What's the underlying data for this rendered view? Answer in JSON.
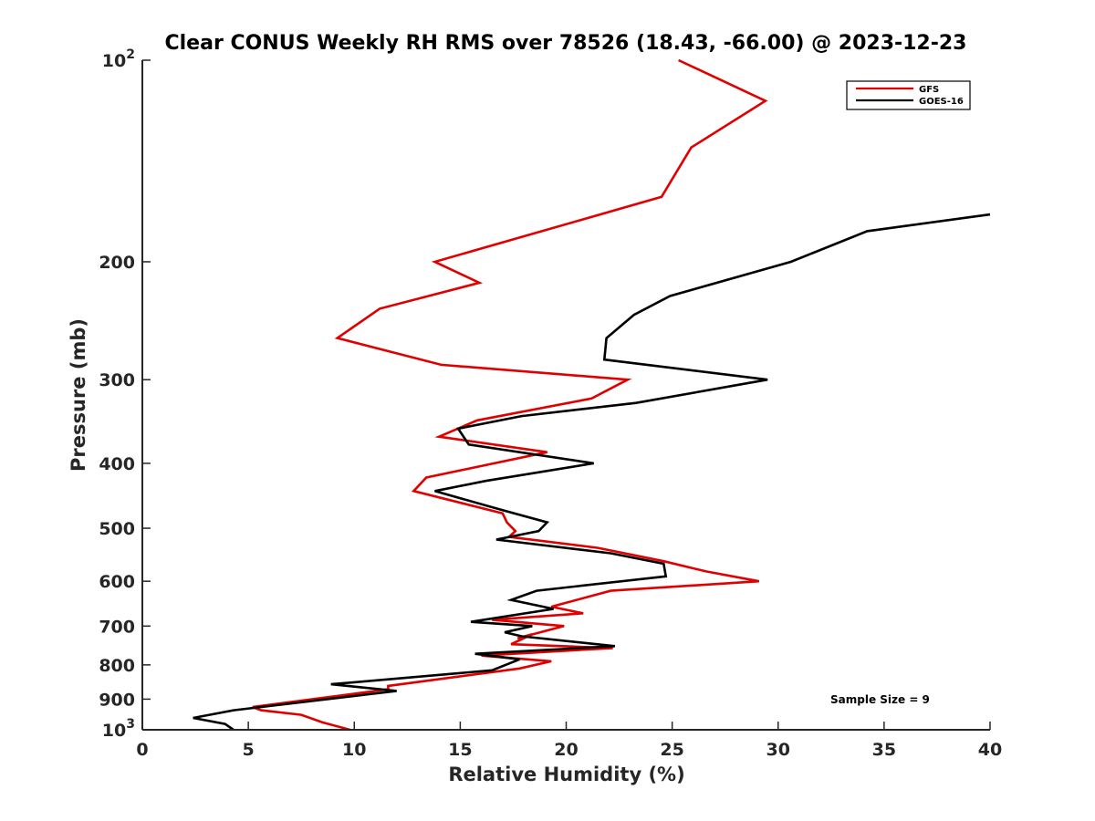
{
  "chart_data": {
    "type": "line",
    "title": "Clear CONUS Weekly RH RMS over 78526 (18.43, -66.00) @ 2023-12-23",
    "xlabel": "Relative Humidity (%)",
    "ylabel": "Pressure (mb)",
    "xlim": [
      0,
      40
    ],
    "ylim": [
      100,
      1000
    ],
    "y_scale": "log",
    "y_reversed": true,
    "x_ticks": [
      "0",
      "5",
      "10",
      "15",
      "20",
      "25",
      "30",
      "35",
      "40"
    ],
    "y_ticks": [
      {
        "value": 100,
        "base": "10",
        "exp": "2"
      },
      {
        "value": 200,
        "label": "200"
      },
      {
        "value": 300,
        "label": "300"
      },
      {
        "value": 400,
        "label": "400"
      },
      {
        "value": 500,
        "label": "500"
      },
      {
        "value": 600,
        "label": "600"
      },
      {
        "value": 700,
        "label": "700"
      },
      {
        "value": 800,
        "label": "800"
      },
      {
        "value": 900,
        "label": "900"
      },
      {
        "value": 1000,
        "base": "10",
        "exp": "3"
      }
    ],
    "grid": false,
    "legend_position": "top-right",
    "annotation": "Sample Size = 9",
    "series": [
      {
        "name": "GFS",
        "color": "#e00000",
        "points": [
          [
            25.3,
            100
          ],
          [
            29.4,
            115
          ],
          [
            25.9,
            135
          ],
          [
            24.5,
            160
          ],
          [
            13.8,
            200
          ],
          [
            15.9,
            215
          ],
          [
            11.2,
            235
          ],
          [
            9.2,
            260
          ],
          [
            14.1,
            285
          ],
          [
            22.9,
            300
          ],
          [
            21.2,
            320
          ],
          [
            15.8,
            345
          ],
          [
            14.0,
            365
          ],
          [
            19.1,
            385
          ],
          [
            13.4,
            420
          ],
          [
            12.8,
            440
          ],
          [
            17.0,
            475
          ],
          [
            17.2,
            490
          ],
          [
            17.6,
            505
          ],
          [
            17.3,
            515
          ],
          [
            21.5,
            535
          ],
          [
            24.6,
            560
          ],
          [
            26.6,
            580
          ],
          [
            29.1,
            600
          ],
          [
            22.1,
            620
          ],
          [
            19.3,
            655
          ],
          [
            20.8,
            670
          ],
          [
            16.5,
            685
          ],
          [
            19.9,
            700
          ],
          [
            17.7,
            730
          ],
          [
            18.4,
            720
          ],
          [
            17.4,
            745
          ],
          [
            22.2,
            755
          ],
          [
            16.0,
            775
          ],
          [
            19.3,
            790
          ],
          [
            17.8,
            810
          ],
          [
            11.6,
            860
          ],
          [
            11.6,
            870
          ],
          [
            5.2,
            925
          ],
          [
            5.6,
            935
          ],
          [
            7.5,
            950
          ],
          [
            8.5,
            975
          ],
          [
            9.8,
            1000
          ]
        ]
      },
      {
        "name": "GOES-16",
        "color": "#000000",
        "points": [
          [
            40.0,
            170
          ],
          [
            34.2,
            180
          ],
          [
            30.6,
            200
          ],
          [
            24.9,
            225
          ],
          [
            23.2,
            240
          ],
          [
            21.9,
            260
          ],
          [
            21.8,
            280
          ],
          [
            29.5,
            300
          ],
          [
            23.3,
            325
          ],
          [
            17.9,
            340
          ],
          [
            14.9,
            355
          ],
          [
            15.4,
            375
          ],
          [
            21.3,
            400
          ],
          [
            16.2,
            425
          ],
          [
            13.8,
            440
          ],
          [
            17.0,
            470
          ],
          [
            19.1,
            490
          ],
          [
            18.7,
            505
          ],
          [
            16.7,
            520
          ],
          [
            22.1,
            545
          ],
          [
            24.6,
            565
          ],
          [
            24.7,
            590
          ],
          [
            18.6,
            620
          ],
          [
            17.4,
            640
          ],
          [
            19.4,
            660
          ],
          [
            15.5,
            690
          ],
          [
            18.4,
            700
          ],
          [
            17.1,
            715
          ],
          [
            17.9,
            725
          ],
          [
            22.3,
            750
          ],
          [
            15.7,
            770
          ],
          [
            17.8,
            785
          ],
          [
            16.5,
            815
          ],
          [
            8.9,
            855
          ],
          [
            12.0,
            875
          ],
          [
            4.3,
            935
          ],
          [
            2.4,
            960
          ],
          [
            3.9,
            980
          ],
          [
            4.3,
            1000
          ]
        ]
      }
    ]
  }
}
